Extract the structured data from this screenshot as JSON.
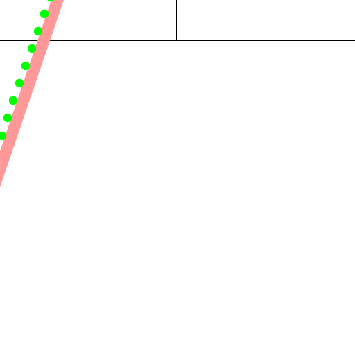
{
  "canvas": {
    "background": "#ffffff"
  },
  "grid": {
    "line_color": "#000000",
    "cells_visible": 3
  },
  "band": {
    "color": "#ff9999"
  },
  "dots": {
    "color": "#00ff00",
    "count_visible": 9
  }
}
